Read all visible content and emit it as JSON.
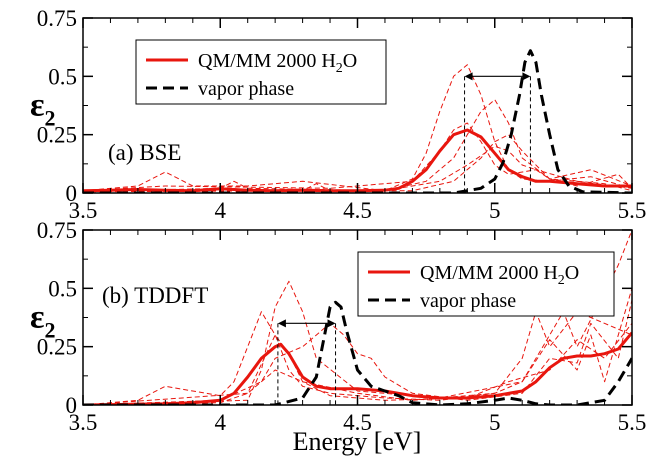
{
  "colors": {
    "qmmm": "#e8160e",
    "vapor": "#000000",
    "frame": "#000000"
  },
  "xlabel": "Energy [eV]",
  "chart_data": [
    {
      "type": "line",
      "panel_label": "(a) BSE",
      "ylabel_main": "ε",
      "ylabel_sub": "2",
      "xlim": [
        3.5,
        5.5
      ],
      "ylim": [
        0,
        0.75
      ],
      "xticks": [
        "3.5",
        "4",
        "4.5",
        "5",
        "5.5"
      ],
      "yticks": [
        "0",
        "0.25",
        "0.5",
        "0.75"
      ],
      "legend": {
        "placement": "top-left",
        "qmmm_label": "QM/MM 2000 H",
        "qmmm_sub": "2",
        "qmmm_tail": "O",
        "vapor_label": "vapor phase"
      },
      "peak_shift": {
        "from": 4.89,
        "to": 5.13
      },
      "series": [
        {
          "name": "QM/MM 2000 H2O",
          "style": "solid",
          "x": [
            3.5,
            3.6,
            3.7,
            3.8,
            3.9,
            4.0,
            4.1,
            4.2,
            4.3,
            4.4,
            4.5,
            4.6,
            4.65,
            4.7,
            4.75,
            4.8,
            4.85,
            4.9,
            4.95,
            5.0,
            5.05,
            5.1,
            5.15,
            5.2,
            5.3,
            5.4,
            5.5
          ],
          "y": [
            0.01,
            0.012,
            0.015,
            0.012,
            0.01,
            0.018,
            0.012,
            0.01,
            0.012,
            0.01,
            0.01,
            0.012,
            0.02,
            0.05,
            0.1,
            0.18,
            0.25,
            0.27,
            0.24,
            0.17,
            0.1,
            0.07,
            0.05,
            0.05,
            0.04,
            0.03,
            0.03
          ]
        },
        {
          "name": "vapor phase",
          "style": "dashed",
          "x": [
            3.5,
            4.5,
            4.85,
            4.9,
            4.95,
            5.0,
            5.03,
            5.06,
            5.09,
            5.11,
            5.13,
            5.15,
            5.17,
            5.2,
            5.23,
            5.27,
            5.32,
            5.5
          ],
          "y": [
            0,
            0,
            0,
            0.01,
            0.02,
            0.06,
            0.13,
            0.25,
            0.42,
            0.56,
            0.61,
            0.56,
            0.42,
            0.25,
            0.1,
            0.03,
            0.005,
            0
          ]
        },
        {
          "name": "",
          "style": "thin",
          "x": [
            3.5,
            3.7,
            3.8,
            3.9,
            4.1,
            4.3,
            4.6,
            4.7,
            4.75,
            4.8,
            4.85,
            4.9,
            4.95,
            5.0,
            5.05,
            5.1,
            5.2,
            5.35,
            5.5
          ],
          "y": [
            0.01,
            0.03,
            0.09,
            0.03,
            0.03,
            0.05,
            0.01,
            0.06,
            0.17,
            0.35,
            0.5,
            0.55,
            0.42,
            0.22,
            0.1,
            0.06,
            0.05,
            0.07,
            0.02
          ]
        },
        {
          "name": "",
          "style": "thin",
          "x": [
            3.5,
            4.0,
            4.05,
            4.1,
            4.6,
            4.75,
            4.85,
            4.9,
            4.95,
            5.0,
            5.05,
            5.1,
            5.2,
            5.35,
            5.5
          ],
          "y": [
            0.005,
            0.02,
            0.05,
            0.02,
            0.01,
            0.05,
            0.15,
            0.25,
            0.35,
            0.4,
            0.3,
            0.15,
            0.06,
            0.1,
            0.03
          ]
        },
        {
          "name": "",
          "style": "thin",
          "x": [
            3.5,
            3.8,
            4.4,
            4.7,
            4.8,
            4.85,
            4.9,
            4.95,
            5.0,
            5.05,
            5.15,
            5.3,
            5.5
          ],
          "y": [
            0.01,
            0.03,
            0.02,
            0.05,
            0.18,
            0.27,
            0.3,
            0.22,
            0.12,
            0.08,
            0.1,
            0.05,
            0.02
          ]
        },
        {
          "name": "",
          "style": "thin",
          "x": [
            3.5,
            4.3,
            4.35,
            4.4,
            4.7,
            4.85,
            4.95,
            5.0,
            5.05,
            5.1,
            5.2,
            5.4,
            5.5
          ],
          "y": [
            0.005,
            0.01,
            0.04,
            0.01,
            0.01,
            0.05,
            0.15,
            0.22,
            0.25,
            0.18,
            0.06,
            0.04,
            0.01
          ]
        },
        {
          "name": "",
          "style": "thin",
          "x": [
            3.5,
            4.6,
            4.8,
            4.9,
            5.0,
            5.05,
            5.1,
            5.15,
            5.2,
            5.3,
            5.45,
            5.5
          ],
          "y": [
            0.01,
            0.01,
            0.05,
            0.12,
            0.2,
            0.18,
            0.12,
            0.1,
            0.06,
            0.03,
            0.08,
            0.02
          ]
        }
      ]
    },
    {
      "type": "line",
      "panel_label": "(b) TDDFT",
      "ylabel_main": "ε",
      "ylabel_sub": "2",
      "xlim": [
        3.5,
        5.5
      ],
      "ylim": [
        0,
        0.75
      ],
      "xticks": [
        "3.5",
        "4",
        "4.5",
        "5",
        "5.5"
      ],
      "yticks": [
        "0",
        "0.25",
        "0.5",
        "0.75"
      ],
      "legend": {
        "placement": "top-right",
        "qmmm_label": "QM/MM 2000 H",
        "qmmm_sub": "2",
        "qmmm_tail": "O",
        "vapor_label": "vapor phase"
      },
      "peak_shift": {
        "from": 4.21,
        "to": 4.42
      },
      "series": [
        {
          "name": "QM/MM 2000 H2O",
          "style": "solid",
          "x": [
            3.5,
            3.8,
            3.9,
            4.0,
            4.05,
            4.1,
            4.15,
            4.2,
            4.22,
            4.25,
            4.3,
            4.35,
            4.4,
            4.5,
            4.6,
            4.7,
            4.8,
            4.9,
            5.0,
            5.1,
            5.15,
            5.2,
            5.25,
            5.3,
            5.35,
            5.4,
            5.45,
            5.5
          ],
          "y": [
            0,
            0.005,
            0.01,
            0.02,
            0.05,
            0.12,
            0.2,
            0.25,
            0.26,
            0.22,
            0.12,
            0.08,
            0.07,
            0.07,
            0.06,
            0.04,
            0.03,
            0.03,
            0.04,
            0.06,
            0.1,
            0.16,
            0.2,
            0.21,
            0.21,
            0.22,
            0.24,
            0.31
          ]
        },
        {
          "name": "vapor phase",
          "style": "dashed",
          "x": [
            3.5,
            4.2,
            4.3,
            4.35,
            4.38,
            4.4,
            4.42,
            4.44,
            4.46,
            4.5,
            4.55,
            4.6,
            4.65,
            4.7,
            4.8,
            4.9,
            5.0,
            5.05,
            5.1,
            5.15,
            5.2,
            5.3,
            5.4,
            5.45,
            5.5
          ],
          "y": [
            0,
            0,
            0.03,
            0.12,
            0.3,
            0.42,
            0.44,
            0.42,
            0.32,
            0.15,
            0.08,
            0.06,
            0.04,
            0.01,
            0,
            0.005,
            0.02,
            0.03,
            0.02,
            0.005,
            0,
            0,
            0.02,
            0.1,
            0.2
          ]
        },
        {
          "name": "",
          "style": "thin",
          "x": [
            3.5,
            3.7,
            3.8,
            3.9,
            4.0,
            4.05,
            4.1,
            4.15,
            4.2,
            4.25,
            4.3,
            4.4,
            4.6,
            4.8,
            5.0,
            5.1,
            5.15,
            5.2,
            5.3,
            5.5
          ],
          "y": [
            0,
            0.02,
            0.08,
            0.06,
            0.04,
            0.1,
            0.25,
            0.4,
            0.3,
            0.15,
            0.08,
            0.05,
            0.03,
            0.02,
            0.05,
            0.2,
            0.4,
            0.25,
            0.4,
            0.3
          ]
        },
        {
          "name": "",
          "style": "thin",
          "x": [
            3.5,
            4.1,
            4.15,
            4.2,
            4.25,
            4.3,
            4.35,
            4.5,
            4.8,
            5.1,
            5.2,
            5.25,
            5.3,
            5.45,
            5.5
          ],
          "y": [
            0,
            0.02,
            0.15,
            0.42,
            0.53,
            0.4,
            0.2,
            0.06,
            0.03,
            0.1,
            0.3,
            0.4,
            0.25,
            0.6,
            0.75
          ]
        },
        {
          "name": "",
          "style": "thin",
          "x": [
            3.5,
            4.0,
            4.15,
            4.2,
            4.3,
            4.4,
            4.45,
            4.5,
            4.55,
            4.6,
            4.7,
            4.9,
            5.1,
            5.2,
            5.3,
            5.35,
            5.45,
            5.5
          ],
          "y": [
            0,
            0.02,
            0.1,
            0.2,
            0.25,
            0.35,
            0.3,
            0.22,
            0.2,
            0.12,
            0.05,
            0.02,
            0.05,
            0.2,
            0.18,
            0.35,
            0.2,
            0.45
          ]
        },
        {
          "name": "",
          "style": "thin",
          "x": [
            3.5,
            4.0,
            4.1,
            4.2,
            4.3,
            4.5,
            4.7,
            5.0,
            5.1,
            5.2,
            5.3,
            5.35,
            5.4,
            5.5
          ],
          "y": [
            0,
            0.01,
            0.05,
            0.15,
            0.1,
            0.05,
            0.02,
            0.05,
            0.1,
            0.28,
            0.15,
            0.3,
            0.1,
            0.5
          ]
        },
        {
          "name": "",
          "style": "thin",
          "x": [
            3.5,
            4.1,
            4.2,
            4.25,
            4.3,
            4.4,
            4.6,
            4.9,
            5.05,
            5.2,
            5.3,
            5.4,
            5.5
          ],
          "y": [
            0,
            0.05,
            0.3,
            0.22,
            0.1,
            0.04,
            0.02,
            0.03,
            0.1,
            0.15,
            0.28,
            0.2,
            0.35
          ]
        }
      ]
    }
  ]
}
